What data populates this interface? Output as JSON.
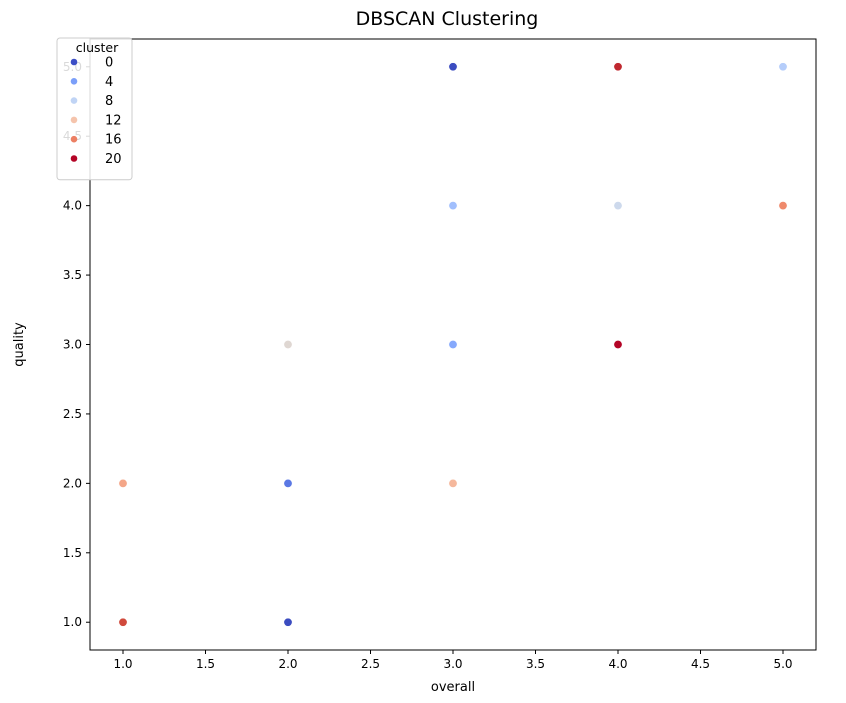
{
  "chart_data": {
    "type": "scatter",
    "title": "DBSCAN Clustering",
    "xlabel": "overall",
    "ylabel": "quality",
    "xlim": [
      0.8,
      5.2
    ],
    "ylim": [
      0.8,
      5.2
    ],
    "xticks": [
      "1.0",
      "1.5",
      "2.0",
      "2.5",
      "3.0",
      "3.5",
      "4.0",
      "4.5",
      "5.0"
    ],
    "yticks": [
      "1.0",
      "1.5",
      "2.0",
      "2.5",
      "3.0",
      "3.5",
      "4.0",
      "4.5",
      "5.0"
    ],
    "grid": false,
    "legend": {
      "title": "cluster",
      "placement": "top-left",
      "entries": [
        {
          "label": "0",
          "color": "#3d4fc6"
        },
        {
          "label": "4",
          "color": "#7b9ff9"
        },
        {
          "label": "8",
          "color": "#c0d4f5"
        },
        {
          "label": "12",
          "color": "#f5c4ac"
        },
        {
          "label": "16",
          "color": "#ec7f63"
        },
        {
          "label": "20",
          "color": "#b40426"
        }
      ]
    },
    "points": [
      {
        "x": 1,
        "y": 1,
        "color": "#d04a3c"
      },
      {
        "x": 1,
        "y": 2,
        "color": "#f4a688"
      },
      {
        "x": 2,
        "y": 1,
        "color": "#3b4cc0"
      },
      {
        "x": 2,
        "y": 2,
        "color": "#5a78e4"
      },
      {
        "x": 2,
        "y": 3,
        "color": "#dfd7d2"
      },
      {
        "x": 3,
        "y": 2,
        "color": "#f5b89c"
      },
      {
        "x": 3,
        "y": 3,
        "color": "#86a9fc"
      },
      {
        "x": 3,
        "y": 4,
        "color": "#a1bffd"
      },
      {
        "x": 3,
        "y": 5,
        "color": "#3b4cc0"
      },
      {
        "x": 4,
        "y": 3,
        "color": "#b40426"
      },
      {
        "x": 4,
        "y": 4,
        "color": "#cdd9ec"
      },
      {
        "x": 4,
        "y": 5,
        "color": "#c0282f"
      },
      {
        "x": 5,
        "y": 4,
        "color": "#ef8a6c"
      },
      {
        "x": 5,
        "y": 5,
        "color": "#b5cdfa"
      }
    ]
  }
}
